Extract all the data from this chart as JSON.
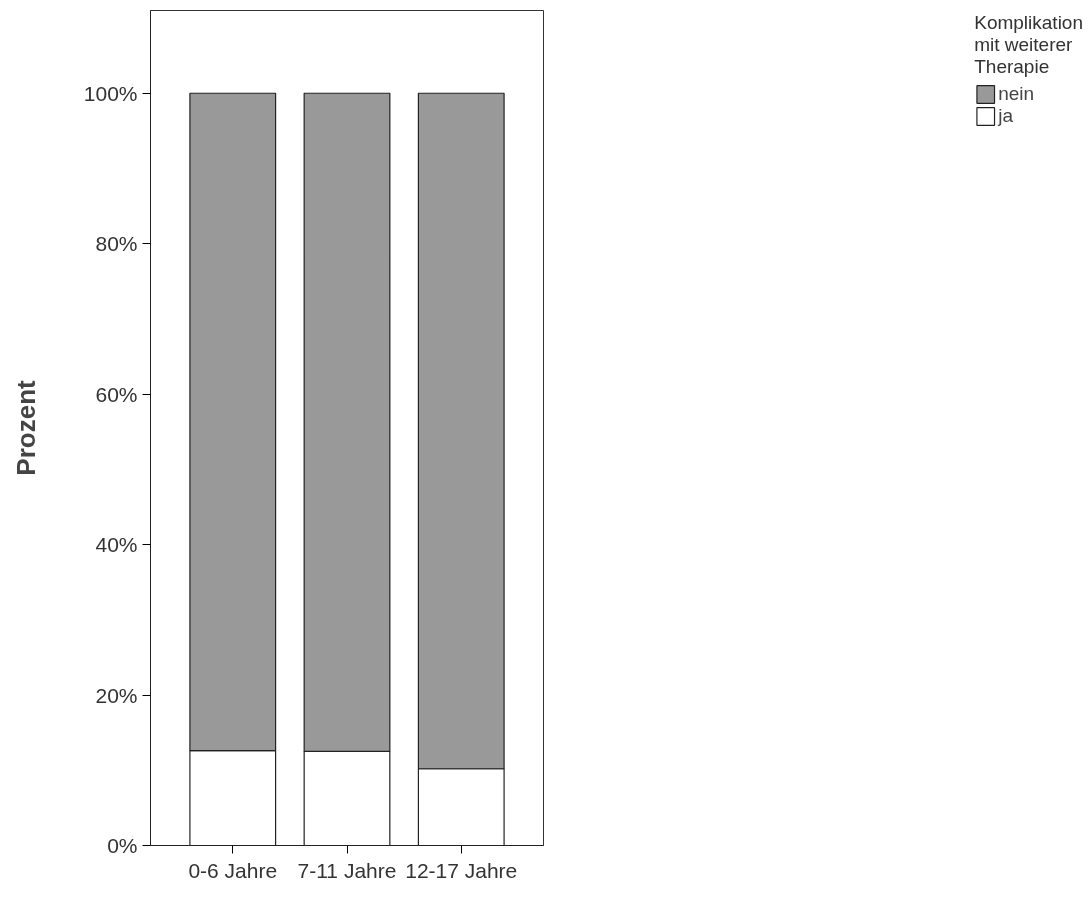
{
  "chart_data": {
    "type": "bar",
    "stacked": true,
    "ylabel": "Prozent",
    "legend_title": "Komplikation mit weiterer Therapie",
    "legend": "top right",
    "grid": false,
    "categories": [
      "0-6 Jahre",
      "7-11 Jahre",
      "12-17 Jahre"
    ],
    "series": [
      {
        "name": "ja",
        "color": "#ffffff",
        "values": [
          12.6,
          12.5,
          10.2
        ]
      },
      {
        "name": "nein",
        "color": "#999999",
        "values": [
          87.4,
          87.5,
          89.8
        ]
      }
    ],
    "ylim": [
      0,
      111
    ],
    "yticks": [
      {
        "value": 0,
        "label": "0%"
      },
      {
        "value": 20,
        "label": "20%"
      },
      {
        "value": 40,
        "label": "40%"
      },
      {
        "value": 60,
        "label": "60%"
      },
      {
        "value": 80,
        "label": "80%"
      },
      {
        "value": 100,
        "label": "100%"
      }
    ]
  }
}
